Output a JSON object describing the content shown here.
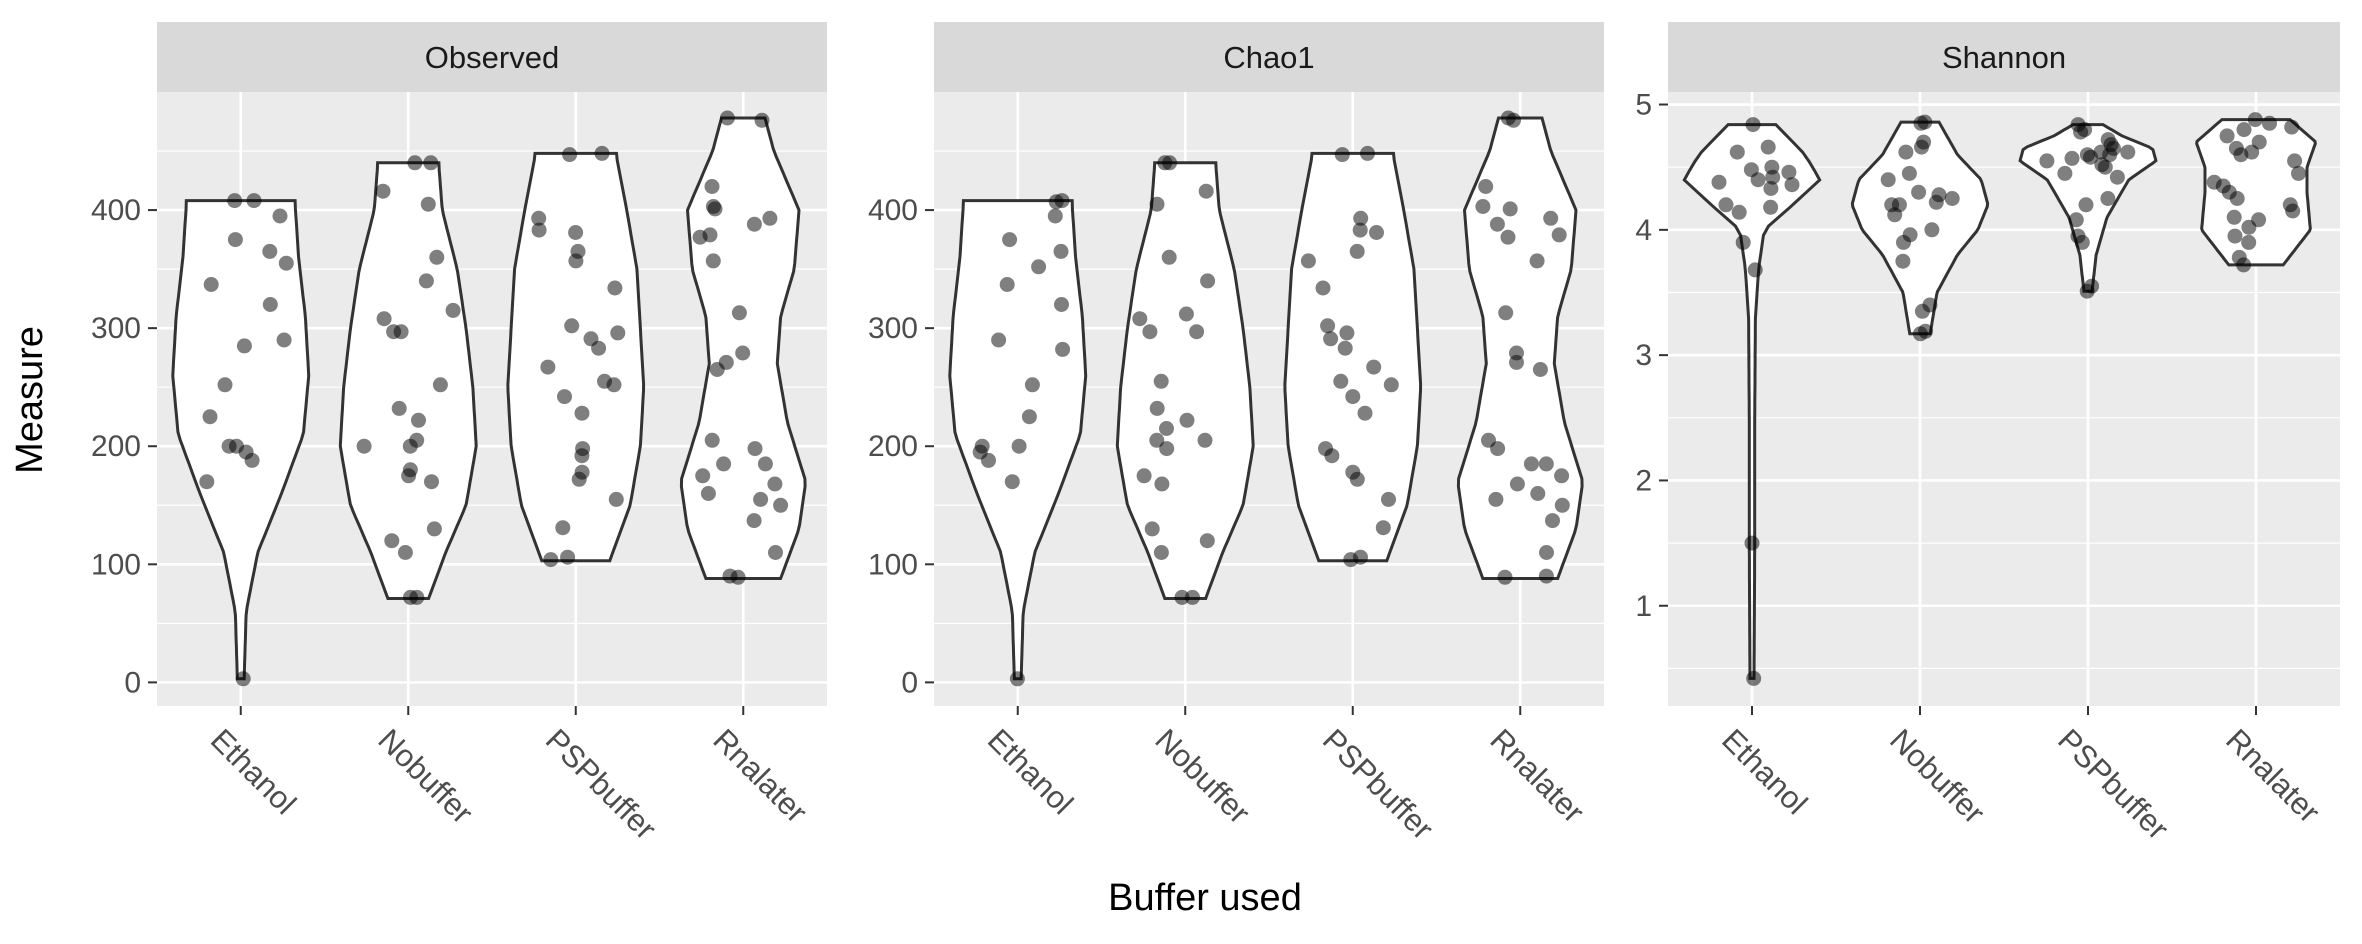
{
  "figure": {
    "ylabel": "Measure",
    "xlabel": "Buffer used"
  },
  "colors": {
    "panel_bg": "#EBEBEB",
    "strip_bg": "#D9D9D9",
    "grid": "#FFFFFF",
    "violin_fill": "#FFFFFF",
    "violin_stroke": "#333333",
    "point": "#000000",
    "axis_text": "#4D4D4D",
    "title_text": "#000000",
    "strip_text": "#1A1A1A"
  },
  "chart_data": [
    {
      "type": "violin",
      "title": "Observed",
      "categories": [
        "Ethanol",
        "Nobuffer",
        "PSPbuffer",
        "Rnalater"
      ],
      "ylim": [
        -20,
        500
      ],
      "yticks": [
        0,
        100,
        200,
        300,
        400
      ],
      "yticklabels": [
        "0",
        "100",
        "200",
        "300",
        "400"
      ],
      "grid": true,
      "violins": [
        {
          "category": "Ethanol",
          "min": 3,
          "max": 408,
          "profile": [
            [
              3,
              0.05
            ],
            [
              60,
              0.08
            ],
            [
              110,
              0.25
            ],
            [
              160,
              0.6
            ],
            [
              210,
              0.92
            ],
            [
              260,
              1.0
            ],
            [
              310,
              0.95
            ],
            [
              360,
              0.85
            ],
            [
              405,
              0.8
            ],
            [
              408,
              0.8
            ]
          ]
        },
        {
          "category": "Nobuffer",
          "min": 71,
          "max": 440,
          "profile": [
            [
              71,
              0.3
            ],
            [
              110,
              0.55
            ],
            [
              150,
              0.85
            ],
            [
              200,
              1.0
            ],
            [
              250,
              0.95
            ],
            [
              300,
              0.85
            ],
            [
              350,
              0.72
            ],
            [
              400,
              0.5
            ],
            [
              438,
              0.45
            ],
            [
              440,
              0.45
            ]
          ]
        },
        {
          "category": "PSPbuffer",
          "min": 103,
          "max": 448,
          "profile": [
            [
              103,
              0.5
            ],
            [
              150,
              0.8
            ],
            [
              200,
              0.95
            ],
            [
              250,
              1.0
            ],
            [
              300,
              0.95
            ],
            [
              350,
              0.9
            ],
            [
              400,
              0.75
            ],
            [
              445,
              0.6
            ],
            [
              448,
              0.6
            ]
          ]
        },
        {
          "category": "Rnalater",
          "min": 88,
          "max": 478,
          "profile": [
            [
              88,
              0.55
            ],
            [
              130,
              0.82
            ],
            [
              170,
              0.92
            ],
            [
              220,
              0.65
            ],
            [
              270,
              0.5
            ],
            [
              310,
              0.55
            ],
            [
              350,
              0.75
            ],
            [
              400,
              0.82
            ],
            [
              450,
              0.45
            ],
            [
              478,
              0.32
            ]
          ]
        }
      ],
      "points": [
        {
          "category": "Ethanol",
          "values": [
            3,
            170,
            195,
            200,
            200,
            188,
            225,
            252,
            285,
            290,
            320,
            337,
            355,
            365,
            375,
            395,
            408,
            408
          ]
        },
        {
          "category": "Nobuffer",
          "values": [
            72,
            72,
            110,
            120,
            130,
            170,
            175,
            180,
            200,
            200,
            205,
            222,
            232,
            252,
            297,
            297,
            308,
            315,
            340,
            360,
            405,
            416,
            440,
            440
          ]
        },
        {
          "category": "PSPbuffer",
          "values": [
            104,
            106,
            131,
            155,
            172,
            178,
            192,
            198,
            228,
            242,
            252,
            255,
            267,
            283,
            291,
            296,
            302,
            334,
            357,
            365,
            381,
            383,
            393,
            447,
            448
          ]
        },
        {
          "category": "Rnalater",
          "values": [
            89,
            90,
            110,
            137,
            150,
            155,
            160,
            168,
            175,
            185,
            185,
            198,
            205,
            265,
            271,
            279,
            313,
            357,
            377,
            379,
            388,
            393,
            401,
            403,
            420,
            476,
            478
          ]
        }
      ]
    },
    {
      "type": "violin",
      "title": "Chao1",
      "categories": [
        "Ethanol",
        "Nobuffer",
        "PSPbuffer",
        "Rnalater"
      ],
      "ylim": [
        -20,
        500
      ],
      "yticks": [
        0,
        100,
        200,
        300,
        400
      ],
      "yticklabels": [
        "0",
        "100",
        "200",
        "300",
        "400"
      ],
      "grid": true,
      "violins": [
        {
          "category": "Ethanol",
          "min": 3,
          "max": 408,
          "profile": [
            [
              3,
              0.05
            ],
            [
              60,
              0.08
            ],
            [
              110,
              0.25
            ],
            [
              160,
              0.6
            ],
            [
              210,
              0.92
            ],
            [
              260,
              1.0
            ],
            [
              310,
              0.95
            ],
            [
              360,
              0.85
            ],
            [
              405,
              0.8
            ],
            [
              408,
              0.8
            ]
          ]
        },
        {
          "category": "Nobuffer",
          "min": 71,
          "max": 440,
          "profile": [
            [
              71,
              0.3
            ],
            [
              110,
              0.55
            ],
            [
              150,
              0.85
            ],
            [
              200,
              1.0
            ],
            [
              250,
              0.95
            ],
            [
              300,
              0.85
            ],
            [
              350,
              0.72
            ],
            [
              400,
              0.5
            ],
            [
              438,
              0.45
            ],
            [
              440,
              0.45
            ]
          ]
        },
        {
          "category": "PSPbuffer",
          "min": 103,
          "max": 448,
          "profile": [
            [
              103,
              0.5
            ],
            [
              150,
              0.8
            ],
            [
              200,
              0.95
            ],
            [
              250,
              1.0
            ],
            [
              300,
              0.95
            ],
            [
              350,
              0.9
            ],
            [
              400,
              0.75
            ],
            [
              445,
              0.6
            ],
            [
              448,
              0.6
            ]
          ]
        },
        {
          "category": "Rnalater",
          "min": 88,
          "max": 478,
          "profile": [
            [
              88,
              0.55
            ],
            [
              130,
              0.82
            ],
            [
              170,
              0.92
            ],
            [
              220,
              0.65
            ],
            [
              270,
              0.5
            ],
            [
              310,
              0.55
            ],
            [
              350,
              0.75
            ],
            [
              400,
              0.82
            ],
            [
              450,
              0.45
            ],
            [
              478,
              0.32
            ]
          ]
        }
      ],
      "points": [
        {
          "category": "Ethanol",
          "values": [
            3,
            170,
            188,
            195,
            200,
            200,
            225,
            252,
            282,
            290,
            320,
            337,
            352,
            365,
            375,
            395,
            407,
            408
          ]
        },
        {
          "category": "Nobuffer",
          "values": [
            72,
            72,
            110,
            120,
            130,
            168,
            175,
            198,
            205,
            205,
            215,
            222,
            232,
            255,
            297,
            297,
            308,
            312,
            340,
            360,
            405,
            416,
            440,
            440
          ]
        },
        {
          "category": "PSPbuffer",
          "values": [
            104,
            106,
            131,
            155,
            172,
            178,
            192,
            198,
            228,
            242,
            252,
            255,
            267,
            283,
            291,
            296,
            302,
            334,
            357,
            365,
            381,
            383,
            393,
            447,
            448
          ]
        },
        {
          "category": "Rnalater",
          "values": [
            89,
            90,
            110,
            137,
            150,
            155,
            160,
            168,
            175,
            185,
            185,
            198,
            205,
            265,
            271,
            279,
            313,
            357,
            377,
            379,
            388,
            393,
            401,
            403,
            420,
            476,
            478
          ]
        }
      ]
    },
    {
      "type": "violin",
      "title": "Shannon",
      "categories": [
        "Ethanol",
        "Nobuffer",
        "PSPbuffer",
        "Rnalater"
      ],
      "ylim": [
        0.2,
        5.1
      ],
      "yticks": [
        1,
        2,
        3,
        4,
        5
      ],
      "yticklabels": [
        "1",
        "2",
        "3",
        "4",
        "5"
      ],
      "grid": true,
      "violins": [
        {
          "category": "Ethanol",
          "min": 0.42,
          "max": 4.84,
          "profile": [
            [
              0.42,
              0.03
            ],
            [
              1.5,
              0.04
            ],
            [
              2.5,
              0.04
            ],
            [
              3.3,
              0.05
            ],
            [
              3.7,
              0.1
            ],
            [
              4.0,
              0.18
            ],
            [
              4.2,
              0.6
            ],
            [
              4.4,
              1.0
            ],
            [
              4.6,
              0.78
            ],
            [
              4.84,
              0.35
            ]
          ]
        },
        {
          "category": "Nobuffer",
          "min": 3.17,
          "max": 4.86,
          "profile": [
            [
              3.17,
              0.15
            ],
            [
              3.5,
              0.25
            ],
            [
              3.8,
              0.55
            ],
            [
              4.0,
              0.85
            ],
            [
              4.2,
              1.0
            ],
            [
              4.4,
              0.9
            ],
            [
              4.6,
              0.55
            ],
            [
              4.86,
              0.28
            ]
          ]
        },
        {
          "category": "PSPbuffer",
          "min": 3.51,
          "max": 4.84,
          "profile": [
            [
              3.51,
              0.06
            ],
            [
              3.8,
              0.12
            ],
            [
              4.1,
              0.28
            ],
            [
              4.4,
              0.6
            ],
            [
              4.55,
              1.0
            ],
            [
              4.65,
              0.95
            ],
            [
              4.75,
              0.5
            ],
            [
              4.84,
              0.22
            ]
          ]
        },
        {
          "category": "Rnalater",
          "min": 3.72,
          "max": 4.88,
          "profile": [
            [
              3.72,
              0.4
            ],
            [
              4.0,
              0.8
            ],
            [
              4.3,
              0.75
            ],
            [
              4.5,
              0.75
            ],
            [
              4.7,
              0.88
            ],
            [
              4.88,
              0.5
            ]
          ]
        }
      ],
      "points": [
        {
          "category": "Ethanol",
          "values": [
            0.42,
            1.5,
            3.68,
            3.9,
            4.14,
            4.18,
            4.2,
            4.33,
            4.36,
            4.38,
            4.4,
            4.42,
            4.46,
            4.48,
            4.5,
            4.62,
            4.66,
            4.84
          ]
        },
        {
          "category": "Nobuffer",
          "values": [
            3.17,
            3.19,
            3.35,
            3.4,
            3.75,
            3.9,
            3.96,
            4.0,
            4.12,
            4.2,
            4.2,
            4.22,
            4.25,
            4.28,
            4.3,
            4.4,
            4.45,
            4.62,
            4.66,
            4.7,
            4.85,
            4.86
          ]
        },
        {
          "category": "PSPbuffer",
          "values": [
            3.51,
            3.55,
            3.9,
            3.95,
            4.08,
            4.2,
            4.25,
            4.42,
            4.45,
            4.5,
            4.52,
            4.55,
            4.57,
            4.58,
            4.6,
            4.6,
            4.62,
            4.62,
            4.65,
            4.68,
            4.72,
            4.78,
            4.8,
            4.84
          ]
        },
        {
          "category": "Rnalater",
          "values": [
            3.72,
            3.78,
            3.9,
            3.95,
            4.02,
            4.08,
            4.1,
            4.15,
            4.2,
            4.25,
            4.3,
            4.35,
            4.38,
            4.45,
            4.55,
            4.6,
            4.62,
            4.65,
            4.7,
            4.75,
            4.8,
            4.82,
            4.85,
            4.88
          ]
        }
      ]
    }
  ]
}
